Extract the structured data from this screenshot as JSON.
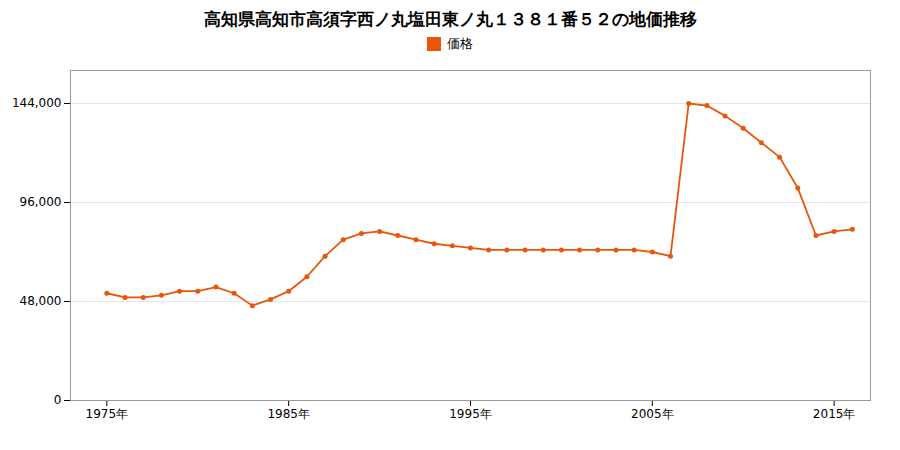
{
  "chart_data": {
    "type": "line",
    "title": "高知県高知市高須字西ノ丸塩田東ノ丸１３８１番５２の地価推移",
    "x": [
      1975,
      1976,
      1977,
      1978,
      1979,
      1980,
      1981,
      1982,
      1983,
      1984,
      1985,
      1986,
      1987,
      1988,
      1989,
      1990,
      1991,
      1992,
      1993,
      1994,
      1995,
      1996,
      1997,
      1998,
      1999,
      2000,
      2001,
      2002,
      2003,
      2004,
      2005,
      2006,
      2007,
      2008,
      2009,
      2010,
      2011,
      2012,
      2013,
      2014,
      2015,
      2016
    ],
    "series": [
      {
        "name": "価格",
        "color": "#E8560A",
        "marker": "circle",
        "values": [
          52000,
          50000,
          50000,
          51000,
          53000,
          53000,
          55000,
          52000,
          46000,
          49000,
          53000,
          60000,
          70000,
          78000,
          81000,
          82000,
          80000,
          78000,
          76000,
          75000,
          74000,
          73000,
          73000,
          73000,
          73000,
          73000,
          73000,
          73000,
          73000,
          73000,
          72000,
          70000,
          144000,
          143000,
          138000,
          132000,
          125000,
          118000,
          103000,
          80000,
          82000,
          83000
        ]
      }
    ],
    "xlim": [
      1973,
      2017
    ],
    "xticks": [
      {
        "value": 1975,
        "label": "1975年"
      },
      {
        "value": 1985,
        "label": "1985年"
      },
      {
        "value": 1995,
        "label": "1995年"
      },
      {
        "value": 2005,
        "label": "2005年"
      },
      {
        "value": 2015,
        "label": "2015年"
      }
    ],
    "ylim": [
      0,
      160000
    ],
    "yticks": [
      0,
      {
        "value": 48000,
        "label": "48,000"
      },
      {
        "value": 96000,
        "label": "96,000"
      },
      {
        "value": 144000,
        "label": "144,000"
      }
    ],
    "grid": "y",
    "legend": "top"
  }
}
